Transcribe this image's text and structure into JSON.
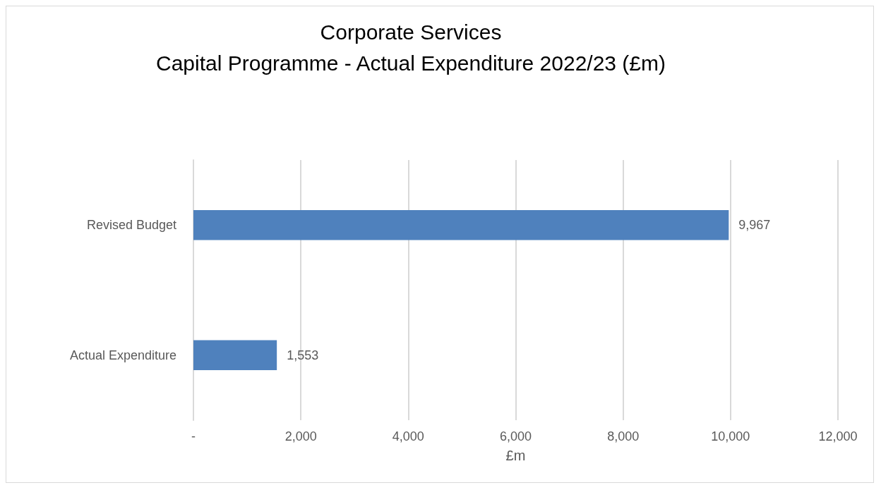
{
  "chart_data": {
    "type": "bar",
    "orientation": "horizontal",
    "title": "Corporate Services",
    "subtitle": "Capital Programme - Actual Expenditure 2022/23 (£m)",
    "xlabel": "£m",
    "categories": [
      "Revised Budget",
      "Actual Expenditure"
    ],
    "values": [
      9967,
      1553
    ],
    "color": "#4f81bd",
    "value_labels": [
      "9,967",
      "1,553"
    ],
    "xlim": [
      0,
      12000
    ],
    "xticks": [
      {
        "value": 0,
        "label": "-"
      },
      {
        "value": 2000,
        "label": "2,000"
      },
      {
        "value": 4000,
        "label": "4,000"
      },
      {
        "value": 6000,
        "label": "6,000"
      },
      {
        "value": 8000,
        "label": "8,000"
      },
      {
        "value": 10000,
        "label": "10,000"
      },
      {
        "value": 12000,
        "label": "12,000"
      }
    ],
    "grid": "x"
  }
}
